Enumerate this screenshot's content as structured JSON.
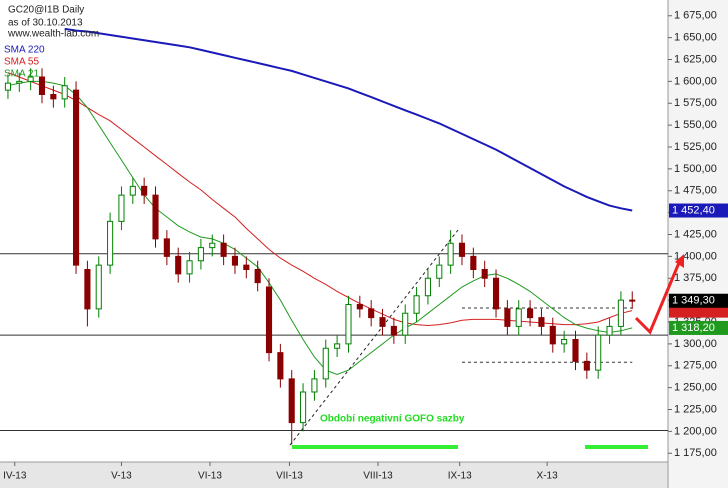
{
  "chart_data": {
    "type": "candlestick",
    "title": "GC20@I1B Daily",
    "subtitle": "as of 30.10.2013",
    "source": "www.wealth-lab.com",
    "annotation": "Období negativní GOFO sazby",
    "xlim": [
      -0.7,
      58.15
    ],
    "ylim": [
      1165,
      1693
    ],
    "xticks": [
      {
        "value": 0.6,
        "label": "IV-13"
      },
      {
        "value": 10,
        "label": "V-13"
      },
      {
        "value": 17.8,
        "label": "VI-13"
      },
      {
        "value": 24.8,
        "label": "VII-13"
      },
      {
        "value": 32.6,
        "label": "VIII-13"
      },
      {
        "value": 39.8,
        "label": "IX-13"
      },
      {
        "value": 47.5,
        "label": "X-13"
      }
    ],
    "yticks": [
      {
        "value": 1175,
        "label": "1 175,00"
      },
      {
        "value": 1200,
        "label": "1 200,00"
      },
      {
        "value": 1225,
        "label": "1 225,00"
      },
      {
        "value": 1250,
        "label": "1 250,00"
      },
      {
        "value": 1275,
        "label": "1 275,00"
      },
      {
        "value": 1300,
        "label": "1 300,00"
      },
      {
        "value": 1325,
        "label": "1 325,00"
      },
      {
        "value": 1350,
        "label": "1 350,00"
      },
      {
        "value": 1375,
        "label": "1 375,00"
      },
      {
        "value": 1400,
        "label": "1 400,00"
      },
      {
        "value": 1425,
        "label": "1 425,00"
      },
      {
        "value": 1450,
        "label": "1 450,00"
      },
      {
        "value": 1475,
        "label": "1 475,00"
      },
      {
        "value": 1500,
        "label": "1 500,00"
      },
      {
        "value": 1525,
        "label": "1 525,00"
      },
      {
        "value": 1550,
        "label": "1 550,00"
      },
      {
        "value": 1575,
        "label": "1 575,00"
      },
      {
        "value": 1600,
        "label": "1 600,00"
      },
      {
        "value": 1625,
        "label": "1 625,00"
      },
      {
        "value": 1650,
        "label": "1 650,00"
      },
      {
        "value": 1675,
        "label": "1 675,00"
      }
    ],
    "hlines": [
      1403,
      1310,
      1201
    ],
    "dashed_levels": [
      1341,
      1279
    ],
    "dashed_start": 40,
    "up_color": "#008000",
    "down_color": "#8b0000",
    "last_label": "1 349,30",
    "open": [
      1590,
      1598,
      1600,
      1605,
      1585,
      1580,
      1590,
      1385,
      1340,
      1390,
      1440,
      1470,
      1480,
      1470,
      1420,
      1400,
      1380,
      1395,
      1410,
      1415,
      1400,
      1390,
      1385,
      1365,
      1290,
      1260,
      1210,
      1245,
      1260,
      1295,
      1300,
      1345,
      1340,
      1330,
      1320,
      1310,
      1335,
      1355,
      1375,
      1390,
      1415,
      1400,
      1385,
      1375,
      1340,
      1320,
      1340,
      1330,
      1320,
      1300,
      1305,
      1280,
      1270,
      1310,
      1320,
      1350
    ],
    "high": [
      1608,
      1610,
      1615,
      1615,
      1595,
      1605,
      1600,
      1395,
      1400,
      1450,
      1480,
      1490,
      1490,
      1480,
      1430,
      1410,
      1405,
      1420,
      1425,
      1425,
      1410,
      1400,
      1395,
      1375,
      1300,
      1270,
      1255,
      1270,
      1305,
      1310,
      1355,
      1355,
      1350,
      1340,
      1330,
      1345,
      1365,
      1385,
      1400,
      1430,
      1425,
      1410,
      1395,
      1385,
      1350,
      1350,
      1350,
      1340,
      1330,
      1315,
      1315,
      1290,
      1320,
      1330,
      1360,
      1360
    ],
    "low": [
      1580,
      1588,
      1590,
      1575,
      1570,
      1570,
      1380,
      1320,
      1330,
      1380,
      1430,
      1460,
      1460,
      1410,
      1390,
      1370,
      1370,
      1385,
      1400,
      1390,
      1380,
      1375,
      1360,
      1280,
      1250,
      1185,
      1200,
      1235,
      1250,
      1285,
      1290,
      1330,
      1320,
      1310,
      1300,
      1300,
      1325,
      1345,
      1365,
      1380,
      1390,
      1375,
      1365,
      1330,
      1310,
      1310,
      1320,
      1310,
      1290,
      1290,
      1270,
      1260,
      1260,
      1300,
      1310,
      1340
    ],
    "close": [
      1598,
      1600,
      1605,
      1585,
      1580,
      1595,
      1390,
      1340,
      1390,
      1440,
      1470,
      1480,
      1470,
      1420,
      1400,
      1380,
      1395,
      1410,
      1415,
      1400,
      1390,
      1385,
      1370,
      1290,
      1260,
      1210,
      1245,
      1260,
      1295,
      1300,
      1345,
      1340,
      1330,
      1320,
      1310,
      1335,
      1355,
      1375,
      1390,
      1415,
      1400,
      1385,
      1375,
      1340,
      1320,
      1340,
      1330,
      1320,
      1300,
      1305,
      1280,
      1270,
      1310,
      1320,
      1350,
      1349.3
    ],
    "series": [
      {
        "name": "SMA 220",
        "color": "#1a1ab8",
        "width": 2,
        "last_label": "1 452,40",
        "values": [
          null,
          null,
          null,
          null,
          null,
          1660,
          1658,
          1657,
          1655,
          1653,
          1651,
          1649,
          1647,
          1645,
          1643,
          1641,
          1639,
          1636,
          1633,
          1630,
          1627,
          1624,
          1621,
          1618,
          1615,
          1612,
          1608,
          1604,
          1600,
          1596,
          1592,
          1587,
          1582,
          1577,
          1572,
          1567,
          1562,
          1557,
          1552,
          1546,
          1540,
          1534,
          1528,
          1522,
          1515,
          1508,
          1501,
          1494,
          1487,
          1480,
          1474,
          1468,
          1463,
          1458,
          1455,
          1452.4
        ]
      },
      {
        "name": "SMA 55",
        "color": "#d42020",
        "width": 1,
        "values": [
          1610,
          1605,
          1600,
          1595,
          1590,
          1585,
          1578,
          1570,
          1562,
          1555,
          1545,
          1535,
          1525,
          1515,
          1505,
          1495,
          1485,
          1476,
          1465,
          1455,
          1445,
          1432,
          1420,
          1408,
          1398,
          1390,
          1383,
          1375,
          1368,
          1360,
          1353,
          1346,
          1340,
          1334,
          1328,
          1324,
          1322,
          1321,
          1322,
          1324,
          1327,
          1328,
          1328,
          1328,
          1327,
          1326,
          1325,
          1324,
          1323,
          1322,
          1322,
          1323,
          1325,
          1330,
          1335,
          1338
        ]
      },
      {
        "name": "SMA 21",
        "color": "#1f9a1f",
        "width": 1,
        "last_label": "1 318,20",
        "values": [
          1595,
          1598,
          1600,
          1600,
          1598,
          1595,
          1585,
          1570,
          1550,
          1530,
          1510,
          1490,
          1470,
          1455,
          1445,
          1435,
          1428,
          1422,
          1420,
          1415,
          1408,
          1398,
          1388,
          1370,
          1350,
          1327,
          1305,
          1285,
          1270,
          1265,
          1270,
          1280,
          1290,
          1300,
          1310,
          1318,
          1325,
          1335,
          1345,
          1355,
          1365,
          1372,
          1378,
          1380,
          1375,
          1368,
          1360,
          1350,
          1340,
          1330,
          1322,
          1318,
          1315,
          1313,
          1315,
          1318.2
        ]
      }
    ]
  }
}
